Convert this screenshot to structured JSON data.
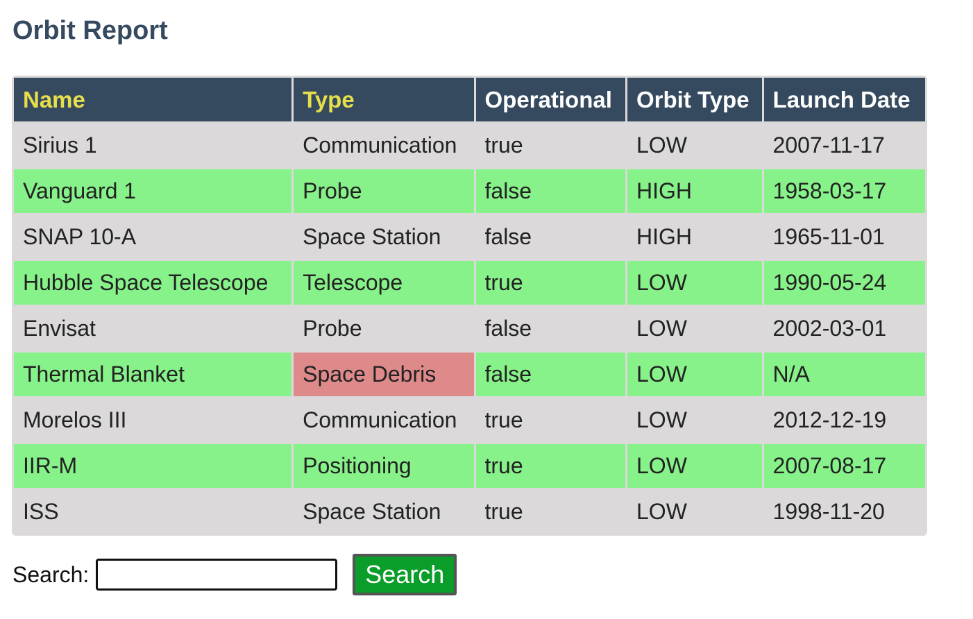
{
  "page": {
    "title": "Orbit Report"
  },
  "table": {
    "headers": [
      "Name",
      "Type",
      "Operational",
      "Orbit Type",
      "Launch Date"
    ],
    "rows": [
      [
        "Sirius 1",
        "Communication",
        "true",
        "LOW",
        "2007-11-17"
      ],
      [
        "Vanguard 1",
        "Probe",
        "false",
        "HIGH",
        "1958-03-17"
      ],
      [
        "SNAP 10-A",
        "Space Station",
        "false",
        "HIGH",
        "1965-11-01"
      ],
      [
        "Hubble Space Telescope",
        "Telescope",
        "true",
        "LOW",
        "1990-05-24"
      ],
      [
        "Envisat",
        "Probe",
        "false",
        "LOW",
        "2002-03-01"
      ],
      [
        "Thermal Blanket",
        "Space Debris",
        "false",
        "LOW",
        "N/A"
      ],
      [
        "Morelos III",
        "Communication",
        "true",
        "LOW",
        "2012-12-19"
      ],
      [
        "IIR-M",
        "Positioning",
        "true",
        "LOW",
        "2007-08-17"
      ],
      [
        "ISS",
        "Space Station",
        "true",
        "LOW",
        "1998-11-20"
      ]
    ]
  },
  "search": {
    "label": "Search:",
    "value": "",
    "button_label": "Search"
  },
  "colors": {
    "header_bg": "#354a5f",
    "header_sortable_text": "#e6df4a",
    "row_even_bg": "#88f28a",
    "row_odd_bg": "#dbd9da",
    "debris_bg": "#de898a",
    "button_bg": "#0a9d2a"
  }
}
